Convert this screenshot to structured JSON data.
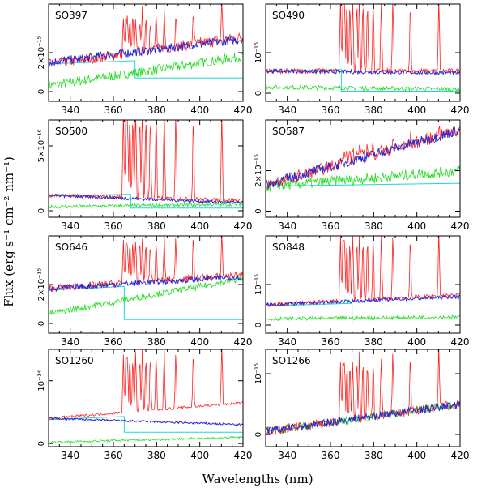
{
  "chart_data": {
    "type": "line",
    "xlabel": "Wavelengths (nm)",
    "ylabel": "Flux (erg s⁻¹ cm⁻² nm⁻¹)",
    "xlim": [
      330,
      420
    ],
    "xticks": [
      340,
      360,
      380,
      400,
      420
    ],
    "series_colors": {
      "observed": "#ff2020",
      "model": "#2a2ad0",
      "component_1": "#22dd22",
      "component_2": "#22d6d6"
    },
    "balmer_lines_nm": [
      364.6,
      365.8,
      366.5,
      367.6,
      369.0,
      370.3,
      372.2,
      373.4,
      375.0,
      377.1,
      379.8,
      383.5,
      388.9,
      397.0,
      410.2
    ],
    "panels": [
      {
        "label": "SO397",
        "ylim": [
          -0.5,
          4.5
        ],
        "yticks": [
          {
            "v": 0,
            "label": "0"
          },
          {
            "v": 2,
            "label": "2×10⁻¹⁵"
          }
        ],
        "jump_nm": 370,
        "balmer_peak": 4.5,
        "obs_start": 1.4,
        "obs_end": 2.8,
        "blue_start": 1.5,
        "blue_end": 2.7,
        "green_start": 0.3,
        "green_end": 1.8,
        "cyan_level": 0.7,
        "noise": 0.28
      },
      {
        "label": "SO490",
        "ylim": [
          -0.2,
          2.2
        ],
        "yticks": [
          {
            "v": 0,
            "label": "0"
          },
          {
            "v": 1,
            "label": "10⁻¹⁵"
          }
        ],
        "jump_nm": 365,
        "balmer_peak": 2.4,
        "obs_start": 0.55,
        "obs_end": 0.55,
        "blue_start": 0.55,
        "blue_end": 0.5,
        "green_start": 0.15,
        "green_end": 0.1,
        "cyan_level": 0.05,
        "noise": 0.06
      },
      {
        "label": "SO500",
        "ylim": [
          -0.5,
          7
        ],
        "yticks": [
          {
            "v": 0,
            "label": "0"
          },
          {
            "v": 5,
            "label": "5×10⁻¹⁶"
          }
        ],
        "jump_nm": 368,
        "balmer_peak": 7,
        "obs_start": 1.2,
        "obs_end": 0.8,
        "blue_start": 1.2,
        "blue_end": 0.6,
        "green_start": 0.3,
        "green_end": 0.5,
        "cyan_level": 0.2,
        "noise": 0.15
      },
      {
        "label": "SO587",
        "ylim": [
          -0.3,
          4.5
        ],
        "yticks": [
          {
            "v": 0,
            "label": "0"
          },
          {
            "v": 2,
            "label": "2×10⁻¹⁵"
          }
        ],
        "jump_nm": 0,
        "balmer_peak": 4.3,
        "obs_start": 1.3,
        "obs_end": 4.0,
        "blue_start": 1.3,
        "blue_end": 4.0,
        "green_start": 1.2,
        "green_end": 2.0,
        "cyan_level": 0.15,
        "noise": 0.3
      },
      {
        "label": "SO646",
        "ylim": [
          -0.5,
          4.5
        ],
        "yticks": [
          {
            "v": 0,
            "label": "0"
          },
          {
            "v": 2,
            "label": "2×10⁻¹⁵"
          }
        ],
        "jump_nm": 365,
        "balmer_peak": 4.5,
        "obs_start": 1.8,
        "obs_end": 2.5,
        "blue_start": 1.8,
        "blue_end": 2.4,
        "green_start": 0.5,
        "green_end": 2.3,
        "cyan_level": 0.2,
        "noise": 0.18
      },
      {
        "label": "SO848",
        "ylim": [
          -0.2,
          2.2
        ],
        "yticks": [
          {
            "v": 0,
            "label": "0"
          },
          {
            "v": 1,
            "label": "10⁻¹⁵"
          }
        ],
        "jump_nm": 370,
        "balmer_peak": 2.3,
        "obs_start": 0.5,
        "obs_end": 0.75,
        "blue_start": 0.5,
        "blue_end": 0.7,
        "green_start": 0.15,
        "green_end": 0.2,
        "cyan_level": 0.05,
        "noise": 0.05
      },
      {
        "label": "SO1260",
        "ylim": [
          -0.05,
          1.5
        ],
        "yticks": [
          {
            "v": 0,
            "label": "0"
          },
          {
            "v": 1,
            "label": "10⁻¹⁴"
          }
        ],
        "jump_nm": 365,
        "balmer_peak": 1.6,
        "obs_start": 0.4,
        "obs_end": 0.65,
        "blue_start": 0.4,
        "blue_end": 0.3,
        "green_start": 0.02,
        "green_end": 0.1,
        "cyan_level": 0.18,
        "noise": 0.02
      },
      {
        "label": "SO1266",
        "ylim": [
          -0.2,
          1.4
        ],
        "yticks": [
          {
            "v": 0,
            "label": "0"
          },
          {
            "v": 1,
            "label": "10⁻¹⁵"
          }
        ],
        "jump_nm": 0,
        "balmer_peak": 1.5,
        "obs_start": 0.05,
        "obs_end": 0.5,
        "blue_start": 0.05,
        "blue_end": 0.5,
        "green_start": 0.05,
        "green_end": 0.5,
        "cyan_level": 0.0,
        "noise": 0.08
      }
    ]
  }
}
